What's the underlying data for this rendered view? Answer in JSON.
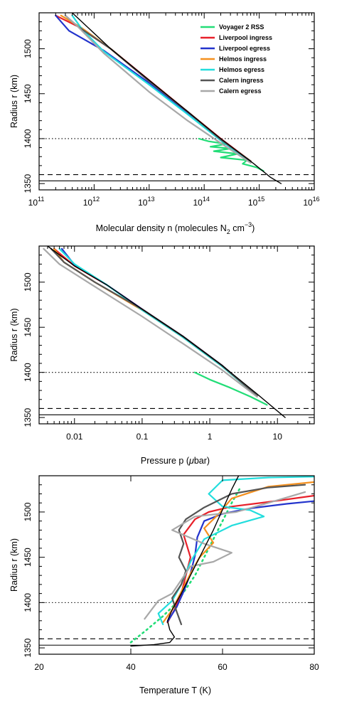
{
  "chart_data": [
    {
      "type": "line",
      "xlabel": "Molecular density n (molecules N",
      "xlabel_sub": "2",
      "xlabel_unit": " cm",
      "xlabel_sup": "−3",
      "xlabel_close": ")",
      "ylabel": "Radius r (km)",
      "xscale": "log",
      "xlim": [
        100000000000.0,
        1e+16
      ],
      "ylim": [
        1343,
        1540
      ],
      "xticks": [
        {
          "v": 100000000000.0,
          "base": "10",
          "exp": "11"
        },
        {
          "v": 1000000000000.0,
          "base": "10",
          "exp": "12"
        },
        {
          "v": 10000000000000.0,
          "base": "10",
          "exp": "13"
        },
        {
          "v": 100000000000000.0,
          "base": "10",
          "exp": "14"
        },
        {
          "v": 1000000000000000.0,
          "base": "10",
          "exp": "15"
        },
        {
          "v": 1e+16,
          "base": "10",
          "exp": "16"
        }
      ],
      "yticks": [
        1350,
        1400,
        1450,
        1500
      ],
      "legend_position": "top-right",
      "reference_lines": [
        {
          "y": 1400,
          "style": "dotted"
        },
        {
          "y": 1360,
          "style": "dashed"
        },
        {
          "y": 1353,
          "style": "solid"
        }
      ],
      "series": [
        {
          "name": "Voyager 2 RSS",
          "color": "#22dd77",
          "x": [
            80000000000000.0,
            120000000000000.0,
            250000000000000.0,
            130000000000000.0,
            300000000000000.0,
            150000000000000.0,
            400000000000000.0,
            200000000000000.0,
            600000000000000.0,
            500000000000000.0,
            900000000000000.0,
            1200000000000000.0
          ],
          "y": [
            1400,
            1397,
            1394,
            1391,
            1389,
            1386,
            1383,
            1379,
            1376,
            1372,
            1368,
            1364
          ]
        },
        {
          "name": "Liverpool ingress",
          "color": "#e8202a",
          "x": [
            200000000000.0,
            500000000000.0,
            2000000000000.0,
            10000000000000.0,
            50000000000000.0,
            200000000000000.0,
            700000000000000.0
          ],
          "y": [
            1537,
            1525,
            1500,
            1465,
            1430,
            1400,
            1375
          ]
        },
        {
          "name": "Liverpool egress",
          "color": "#2233cc",
          "x": [
            200000000000.0,
            350000000000.0,
            1500000000000.0,
            10000000000000.0,
            50000000000000.0,
            200000000000000.0,
            700000000000000.0
          ],
          "y": [
            1537,
            1520,
            1498,
            1462,
            1428,
            1398,
            1374
          ]
        },
        {
          "name": "Helmos ingress",
          "color": "#f5901e",
          "x": [
            250000000000.0,
            600000000000.0,
            2000000000000.0,
            10000000000000.0,
            50000000000000.0,
            200000000000000.0,
            700000000000000.0
          ],
          "y": [
            1537,
            1523,
            1500,
            1464,
            1430,
            1399,
            1375
          ]
        },
        {
          "name": "Helmos egress",
          "color": "#22dddd",
          "x": [
            400000000000.0,
            600000000000.0,
            1500000000000.0,
            10000000000000.0,
            50000000000000.0,
            200000000000000.0,
            700000000000000.0
          ],
          "y": [
            1537,
            1522,
            1497,
            1460,
            1427,
            1398,
            1374
          ]
        },
        {
          "name": "Calern ingress",
          "color": "#555555",
          "x": [
            300000000000.0,
            500000000000.0,
            2000000000000.0,
            10000000000000.0,
            50000000000000.0,
            200000000000000.0,
            700000000000000.0
          ],
          "y": [
            1537,
            1525,
            1500,
            1464,
            1430,
            1399,
            1375
          ]
        },
        {
          "name": "Calern egress",
          "color": "#a8a8a8",
          "x": [
            300000000000.0,
            500000000000.0,
            1500000000000.0,
            10000000000000.0,
            50000000000000.0,
            200000000000000.0,
            700000000000000.0
          ],
          "y": [
            1537,
            1525,
            1495,
            1452,
            1420,
            1395,
            1373
          ]
        },
        {
          "name": "",
          "color": "#000000",
          "x": [
            400000000000.0,
            2000000000000.0,
            10000000000000.0,
            50000000000000.0,
            200000000000000.0,
            800000000000000.0,
            1600000000000000.0,
            2500000000000000.0
          ],
          "y": [
            1540,
            1500,
            1465,
            1430,
            1400,
            1372,
            1357,
            1350
          ]
        }
      ]
    },
    {
      "type": "line",
      "xlabel": "Pressure p (",
      "xlabel_mu": "μ",
      "xlabel_tail": "bar)",
      "ylabel": "Radius r (km)",
      "xscale": "log",
      "xlim": [
        0.003,
        35
      ],
      "ylim": [
        1343,
        1540
      ],
      "xticks": [
        {
          "v": 0.01,
          "label": "0.01"
        },
        {
          "v": 0.1,
          "label": "0.1"
        },
        {
          "v": 1,
          "label": "1"
        },
        {
          "v": 10,
          "label": "10"
        }
      ],
      "yticks": [
        1350,
        1400,
        1450,
        1500
      ],
      "reference_lines": [
        {
          "y": 1400,
          "style": "dotted"
        },
        {
          "y": 1360,
          "style": "dashed"
        },
        {
          "y": 1353,
          "style": "solid"
        }
      ],
      "series": [
        {
          "name": "Voyager 2 RSS",
          "color": "#22dd77",
          "x": [
            0.6,
            1,
            2,
            4,
            7
          ],
          "y": [
            1400,
            1392,
            1383,
            1373,
            1364
          ]
        },
        {
          "name": "Liverpool ingress",
          "color": "#e8202a",
          "x": [
            0.005,
            0.01,
            0.03,
            0.1,
            0.4,
            1.5,
            5
          ],
          "y": [
            1537,
            1518,
            1497,
            1470,
            1440,
            1408,
            1374
          ]
        },
        {
          "name": "Liverpool egress",
          "color": "#2233cc",
          "x": [
            0.0065,
            0.01,
            0.03,
            0.1,
            0.4,
            1.5,
            5
          ],
          "y": [
            1537,
            1519,
            1497,
            1470,
            1440,
            1408,
            1374
          ]
        },
        {
          "name": "Helmos ingress",
          "color": "#f5901e",
          "x": [
            0.005,
            0.007,
            0.02,
            0.1,
            0.4,
            1.5,
            5
          ],
          "y": [
            1537,
            1522,
            1500,
            1469,
            1439,
            1407,
            1374
          ]
        },
        {
          "name": "Helmos egress",
          "color": "#22dddd",
          "x": [
            0.006,
            0.01,
            0.03,
            0.1,
            0.4,
            1.5,
            5
          ],
          "y": [
            1537,
            1520,
            1497,
            1469,
            1439,
            1407,
            1374
          ]
        },
        {
          "name": "Calern ingress",
          "color": "#555555",
          "x": [
            0.0045,
            0.007,
            0.02,
            0.1,
            0.4,
            1.5,
            5
          ],
          "y": [
            1537,
            1522,
            1500,
            1470,
            1440,
            1408,
            1374
          ]
        },
        {
          "name": "Calern egress",
          "color": "#a8a8a8",
          "x": [
            0.0035,
            0.006,
            0.02,
            0.1,
            0.4,
            1.5,
            5
          ],
          "y": [
            1537,
            1520,
            1495,
            1462,
            1432,
            1403,
            1373
          ]
        },
        {
          "name": "",
          "color": "#000000",
          "x": [
            0.004,
            0.01,
            0.03,
            0.1,
            0.4,
            1.5,
            5,
            13
          ],
          "y": [
            1540,
            1518,
            1497,
            1470,
            1440,
            1408,
            1376,
            1350
          ]
        }
      ]
    },
    {
      "type": "line",
      "xlabel": "Temperature T (K)",
      "ylabel": "Radius r (km)",
      "xlim": [
        20,
        80
      ],
      "ylim": [
        1343,
        1540
      ],
      "xticks": [
        {
          "v": 20,
          "label": "20"
        },
        {
          "v": 40,
          "label": "40"
        },
        {
          "v": 60,
          "label": "60"
        },
        {
          "v": 80,
          "label": "80"
        }
      ],
      "yticks": [
        1350,
        1400,
        1450,
        1500
      ],
      "reference_lines": [
        {
          "y": 1400,
          "style": "dotted"
        },
        {
          "y": 1360,
          "style": "dashed"
        },
        {
          "y": 1353,
          "style": "solid"
        }
      ],
      "series": [
        {
          "name": "Voyager 2 RSS",
          "color": "#22dd77",
          "style": "dotted",
          "x": [
            40,
            43,
            47,
            50,
            52,
            54,
            56,
            58,
            60,
            62,
            64
          ],
          "y": [
            1356,
            1368,
            1385,
            1400,
            1415,
            1430,
            1450,
            1470,
            1490,
            1510,
            1528
          ]
        },
        {
          "name": "Liverpool ingress",
          "color": "#e8202a",
          "x": [
            48,
            49.5,
            51,
            52,
            53,
            51.5,
            54,
            57,
            62,
            70,
            80
          ],
          "y": [
            1378,
            1392,
            1410,
            1430,
            1450,
            1475,
            1492,
            1500,
            1506,
            1511,
            1518
          ]
        },
        {
          "name": "Liverpool egress",
          "color": "#2233cc",
          "x": [
            48,
            50,
            51.5,
            53,
            54,
            54.5,
            56,
            60,
            66,
            74,
            80
          ],
          "y": [
            1379,
            1395,
            1412,
            1432,
            1452,
            1472,
            1490,
            1498,
            1504,
            1509,
            1512
          ]
        },
        {
          "name": "Helmos ingress",
          "color": "#f5901e",
          "x": [
            47,
            49,
            51,
            53,
            55,
            58,
            56,
            59,
            62,
            70,
            80
          ],
          "y": [
            1378,
            1392,
            1412,
            1432,
            1450,
            1466,
            1482,
            1497,
            1515,
            1528,
            1533
          ]
        },
        {
          "name": "Helmos egress",
          "color": "#22dddd",
          "x": [
            47,
            46,
            49,
            51,
            53,
            56,
            62,
            69,
            66,
            60,
            57,
            60,
            70,
            80
          ],
          "y": [
            1376,
            1388,
            1402,
            1420,
            1445,
            1470,
            1485,
            1495,
            1502,
            1506,
            1520,
            1535,
            1538,
            1539
          ]
        },
        {
          "name": "Calern ingress",
          "color": "#555555",
          "x": [
            51,
            50,
            49,
            51,
            52,
            50.5,
            51.5,
            50.5,
            52,
            56,
            62,
            70,
            78
          ],
          "y": [
            1376,
            1390,
            1405,
            1420,
            1435,
            1450,
            1465,
            1480,
            1492,
            1505,
            1520,
            1527,
            1530
          ]
        },
        {
          "name": "Calern egress",
          "color": "#a8a8a8",
          "x": [
            43,
            44.5,
            46,
            49,
            51,
            53,
            58,
            62,
            56,
            49,
            54,
            63,
            70,
            78
          ],
          "y": [
            1382,
            1392,
            1402,
            1410,
            1425,
            1440,
            1445,
            1455,
            1465,
            1480,
            1495,
            1500,
            1510,
            1522
          ]
        },
        {
          "name": "",
          "color": "#000000",
          "x": [
            40,
            45,
            48.5,
            49.5,
            48.5,
            48,
            49,
            51,
            54,
            58,
            62,
            63.5
          ],
          "y": [
            1352,
            1353.5,
            1356,
            1362,
            1370,
            1380,
            1392,
            1410,
            1440,
            1480,
            1525,
            1540
          ]
        }
      ]
    }
  ]
}
